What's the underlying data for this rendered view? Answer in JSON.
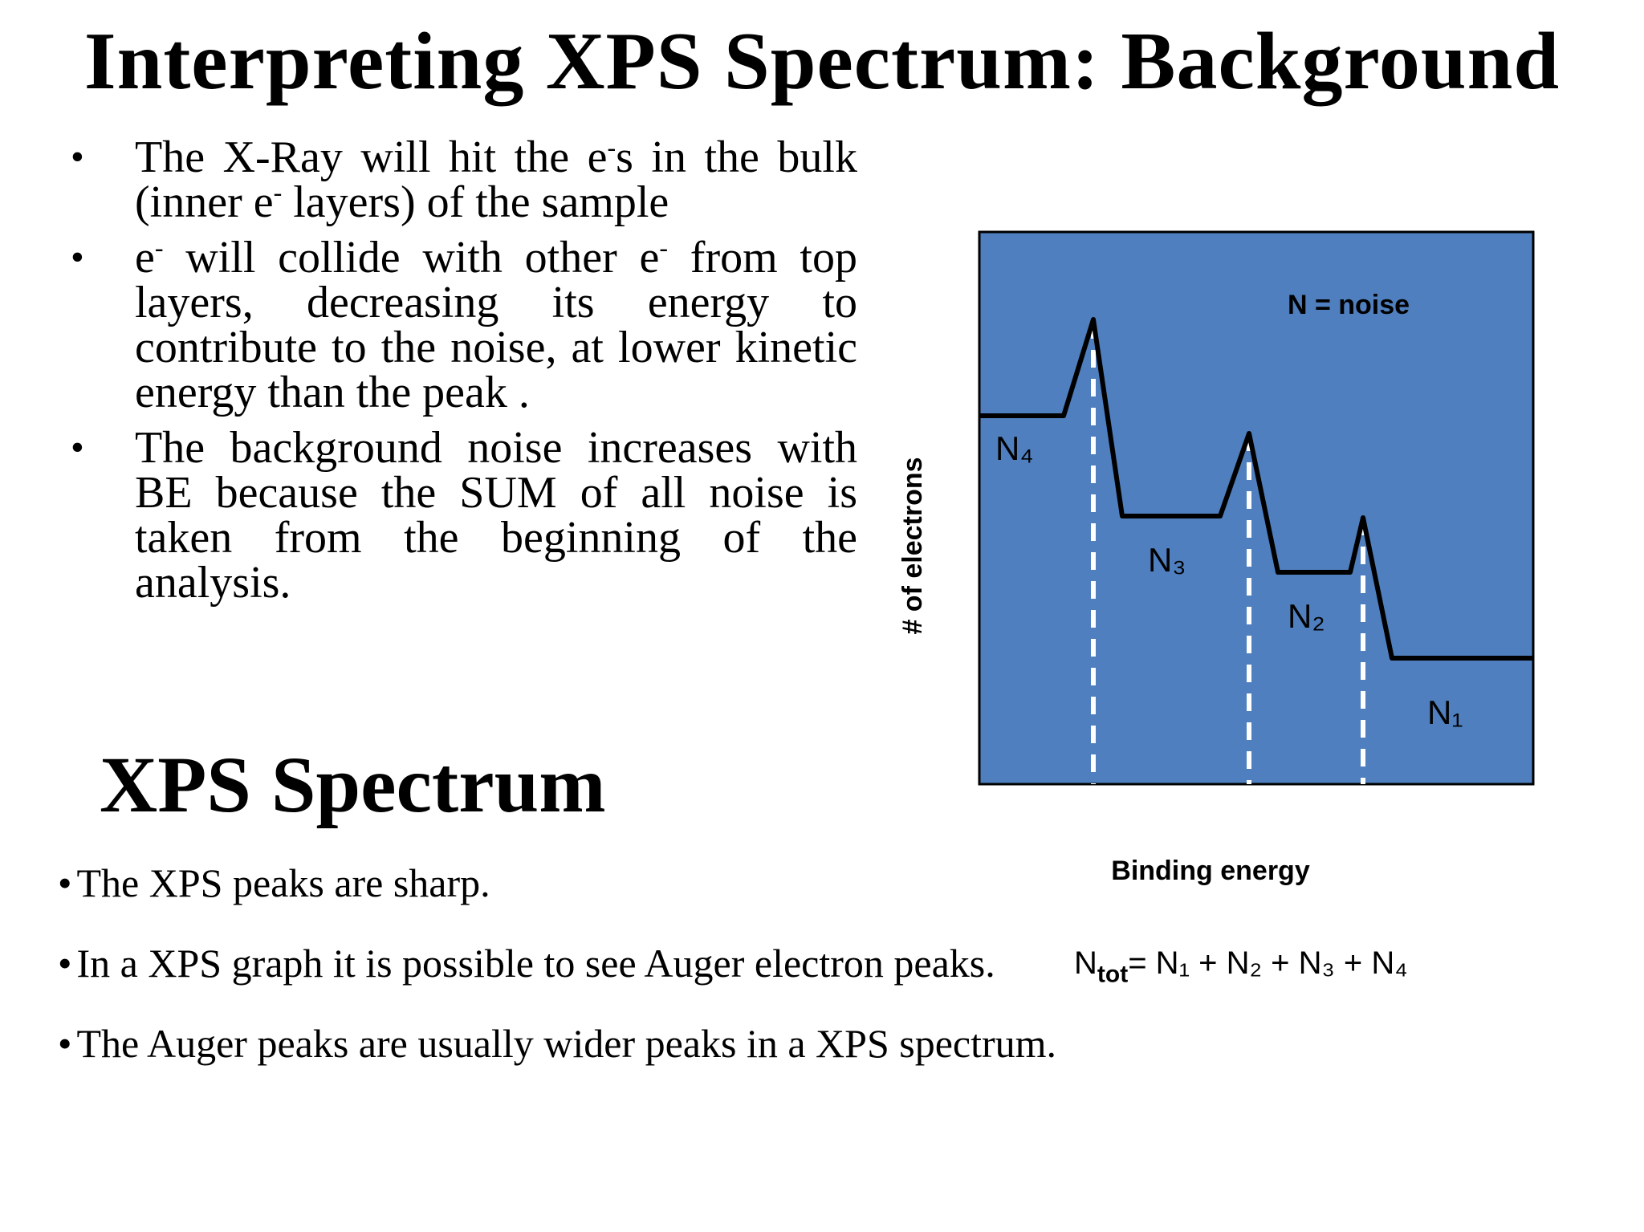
{
  "title": "Interpreting XPS Spectrum:  Background",
  "bullets": [
    {
      "text_before": "The X-Ray will hit the e",
      "sup": "-",
      "text_after": "s in the bulk (inner e",
      "sup2": "-",
      "text_end": " layers) of the sample"
    },
    {
      "text_before": "e",
      "sup": "-",
      "text_after": " will collide with other e",
      "sup2": "-",
      "text_end": " from top layers, decreasing its energy to contribute to the noise, at lower kinetic energy than the peak ."
    },
    {
      "text_before": "The background noise increases with BE because the SUM of all noise is taken from the beginning of the analysis.",
      "sup": "",
      "text_after": "",
      "sup2": "",
      "text_end": ""
    }
  ],
  "subtitle": "XPS Spectrum",
  "lower_bullets": [
    "The XPS peaks are sharp.",
    "In a XPS graph it is possible to see Auger electron peaks.",
    "The Auger peaks are usually wider peaks in a XPS spectrum."
  ],
  "bullet_symbol": "•",
  "diagram": {
    "legend": "N = noise",
    "ylabel": "# of electrons",
    "xlabel": "Binding energy",
    "labels": {
      "n4": "N₄",
      "n3": "N₃",
      "n2": "N₂",
      "n1": "N₁"
    },
    "panel_color": "#4f7fbe",
    "line_color": "#000000",
    "marker_color": "#ffffff"
  },
  "formula": {
    "lhs": "N",
    "sub": "tot",
    "rhs": "= N₁ + N₂ + N₃ + N₄"
  }
}
